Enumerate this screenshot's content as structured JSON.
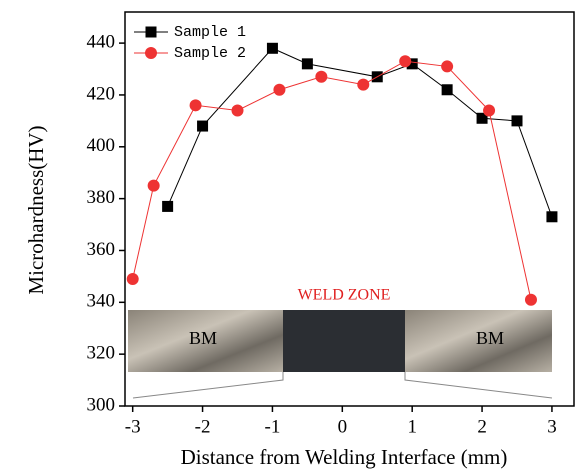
{
  "chart_data": {
    "type": "line",
    "xlabel": "Distance from Welding Interface (mm)",
    "ylabel": "Microhardness(HV)",
    "annotations": [
      "WELD ZONE",
      "BM",
      "BM"
    ],
    "xlim": [
      -3.11,
      3.33
    ],
    "xticks": [
      -3,
      -2,
      -1,
      0,
      1,
      2,
      3
    ],
    "ylim": [
      300,
      452
    ],
    "yticks": [
      300,
      320,
      340,
      360,
      380,
      400,
      420,
      440
    ],
    "legend": "upper left",
    "series": [
      {
        "name": "Sample 1",
        "color": "#000000",
        "marker": "square",
        "x": [
          -2.5,
          -2.0,
          -1.0,
          -0.5,
          0.5,
          1.0,
          1.5,
          2.0,
          2.5,
          3.0
        ],
        "values": [
          377,
          408,
          438,
          432,
          427,
          432,
          422,
          411,
          410,
          373
        ]
      },
      {
        "name": "Sample 2",
        "color": "#ee3333",
        "marker": "circle",
        "x": [
          -3.0,
          -2.7,
          -2.1,
          -1.5,
          -0.9,
          -0.3,
          0.3,
          0.9,
          1.5,
          2.1,
          2.7
        ],
        "values": [
          349,
          385,
          416,
          414,
          422,
          427,
          424,
          433,
          431,
          414,
          341
        ]
      }
    ]
  }
}
